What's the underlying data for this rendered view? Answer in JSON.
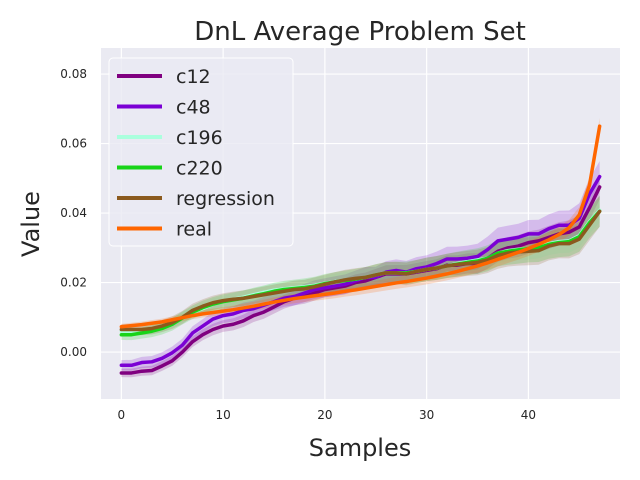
{
  "chart_data": {
    "type": "line",
    "title": "DnL Average Problem Set",
    "xlabel": "Samples",
    "ylabel": "Value",
    "xlim": [
      -2,
      49
    ],
    "ylim": [
      -0.0135,
      0.0875
    ],
    "xticks": [
      0,
      10,
      20,
      30,
      40
    ],
    "yticks": [
      0.0,
      0.02,
      0.04,
      0.06,
      0.08
    ],
    "ytick_labels": [
      "0.00",
      "0.02",
      "0.04",
      "0.06",
      "0.08"
    ],
    "grid": true,
    "legend_position": "top-left",
    "x": [
      0,
      1,
      2,
      3,
      4,
      5,
      6,
      7,
      8,
      9,
      10,
      11,
      12,
      13,
      14,
      15,
      16,
      17,
      18,
      19,
      20,
      21,
      22,
      23,
      24,
      25,
      26,
      27,
      28,
      29,
      30,
      31,
      32,
      33,
      34,
      35,
      36,
      37,
      38,
      39,
      40,
      41,
      42,
      43,
      44,
      45,
      46,
      47
    ],
    "series": [
      {
        "name": "c12",
        "color": "#800080",
        "band": 0.0012,
        "values": [
          -0.006,
          -0.006,
          -0.0055,
          -0.0053,
          -0.004,
          -0.0025,
          0.0,
          0.003,
          0.005,
          0.0065,
          0.0075,
          0.008,
          0.009,
          0.0105,
          0.0115,
          0.013,
          0.0145,
          0.0155,
          0.016,
          0.017,
          0.018,
          0.0185,
          0.019,
          0.02,
          0.0205,
          0.0215,
          0.0225,
          0.0225,
          0.0225,
          0.023,
          0.0235,
          0.024,
          0.025,
          0.025,
          0.0255,
          0.0255,
          0.027,
          0.029,
          0.03,
          0.0305,
          0.0315,
          0.032,
          0.033,
          0.034,
          0.0345,
          0.036,
          0.0415,
          0.0475
        ]
      },
      {
        "name": "c48",
        "color": "#7b00d4",
        "band": 0.0015,
        "values": [
          -0.0038,
          -0.0038,
          -0.003,
          -0.0028,
          -0.0018,
          -0.0002,
          0.002,
          0.0055,
          0.0075,
          0.0095,
          0.0105,
          0.011,
          0.012,
          0.0125,
          0.0135,
          0.0145,
          0.0155,
          0.016,
          0.017,
          0.018,
          0.0185,
          0.019,
          0.0195,
          0.0205,
          0.0215,
          0.0215,
          0.023,
          0.0235,
          0.023,
          0.024,
          0.0245,
          0.0255,
          0.0268,
          0.0268,
          0.027,
          0.0275,
          0.0295,
          0.032,
          0.0325,
          0.033,
          0.034,
          0.034,
          0.0355,
          0.0365,
          0.0365,
          0.0385,
          0.0455,
          0.0505
        ]
      },
      {
        "name": "c196",
        "color": "#aaffdd",
        "band": 0.0012,
        "values": [
          0.006,
          0.006,
          0.0062,
          0.0065,
          0.0072,
          0.0085,
          0.01,
          0.0115,
          0.0125,
          0.0138,
          0.0145,
          0.0152,
          0.0158,
          0.0165,
          0.0172,
          0.0178,
          0.0182,
          0.0185,
          0.0188,
          0.0192,
          0.0198,
          0.0203,
          0.0207,
          0.021,
          0.0215,
          0.0222,
          0.0228,
          0.0228,
          0.0228,
          0.0232,
          0.0238,
          0.0242,
          0.0248,
          0.0255,
          0.026,
          0.0265,
          0.027,
          0.0285,
          0.0292,
          0.0296,
          0.0298,
          0.0302,
          0.0312,
          0.0318,
          0.032,
          0.0335,
          0.0375,
          0.0408
        ]
      },
      {
        "name": "c220",
        "color": "#18d418",
        "band": 0.0015,
        "values": [
          0.005,
          0.005,
          0.0055,
          0.006,
          0.0068,
          0.008,
          0.0098,
          0.0115,
          0.0128,
          0.0138,
          0.0145,
          0.015,
          0.0155,
          0.0162,
          0.0168,
          0.0175,
          0.018,
          0.0183,
          0.0186,
          0.019,
          0.0197,
          0.0202,
          0.0206,
          0.021,
          0.0215,
          0.0222,
          0.0228,
          0.0228,
          0.0228,
          0.0232,
          0.0238,
          0.0242,
          0.0248,
          0.0253,
          0.0258,
          0.0262,
          0.027,
          0.0285,
          0.029,
          0.0294,
          0.0298,
          0.03,
          0.031,
          0.0315,
          0.0318,
          0.0332,
          0.0372,
          0.0405
        ]
      },
      {
        "name": "regression",
        "color": "#8b5a1e",
        "band": 0.0015,
        "values": [
          0.0065,
          0.0065,
          0.0065,
          0.0068,
          0.0075,
          0.0085,
          0.01,
          0.012,
          0.0132,
          0.0142,
          0.0148,
          0.0152,
          0.0155,
          0.016,
          0.0165,
          0.017,
          0.0175,
          0.018,
          0.0182,
          0.0188,
          0.0195,
          0.0202,
          0.0208,
          0.0212,
          0.0215,
          0.0222,
          0.0228,
          0.0228,
          0.0225,
          0.0232,
          0.0238,
          0.0242,
          0.0248,
          0.0252,
          0.0255,
          0.0258,
          0.0265,
          0.0278,
          0.0285,
          0.0288,
          0.029,
          0.0292,
          0.0305,
          0.0312,
          0.0312,
          0.0325,
          0.0365,
          0.0405
        ]
      },
      {
        "name": "real",
        "color": "#ff6600",
        "band": 0.0008,
        "values": [
          0.0073,
          0.0076,
          0.0079,
          0.0083,
          0.0087,
          0.0093,
          0.0099,
          0.0105,
          0.011,
          0.0114,
          0.0118,
          0.0122,
          0.0127,
          0.0132,
          0.0138,
          0.0144,
          0.0149,
          0.0154,
          0.0158,
          0.0162,
          0.0166,
          0.017,
          0.0175,
          0.0179,
          0.0184,
          0.0189,
          0.0194,
          0.0199,
          0.0203,
          0.0208,
          0.0213,
          0.0219,
          0.0225,
          0.0232,
          0.024,
          0.0248,
          0.0257,
          0.0267,
          0.0277,
          0.0287,
          0.0298,
          0.031,
          0.0323,
          0.0338,
          0.0358,
          0.0395,
          0.048,
          0.065
        ]
      }
    ]
  }
}
